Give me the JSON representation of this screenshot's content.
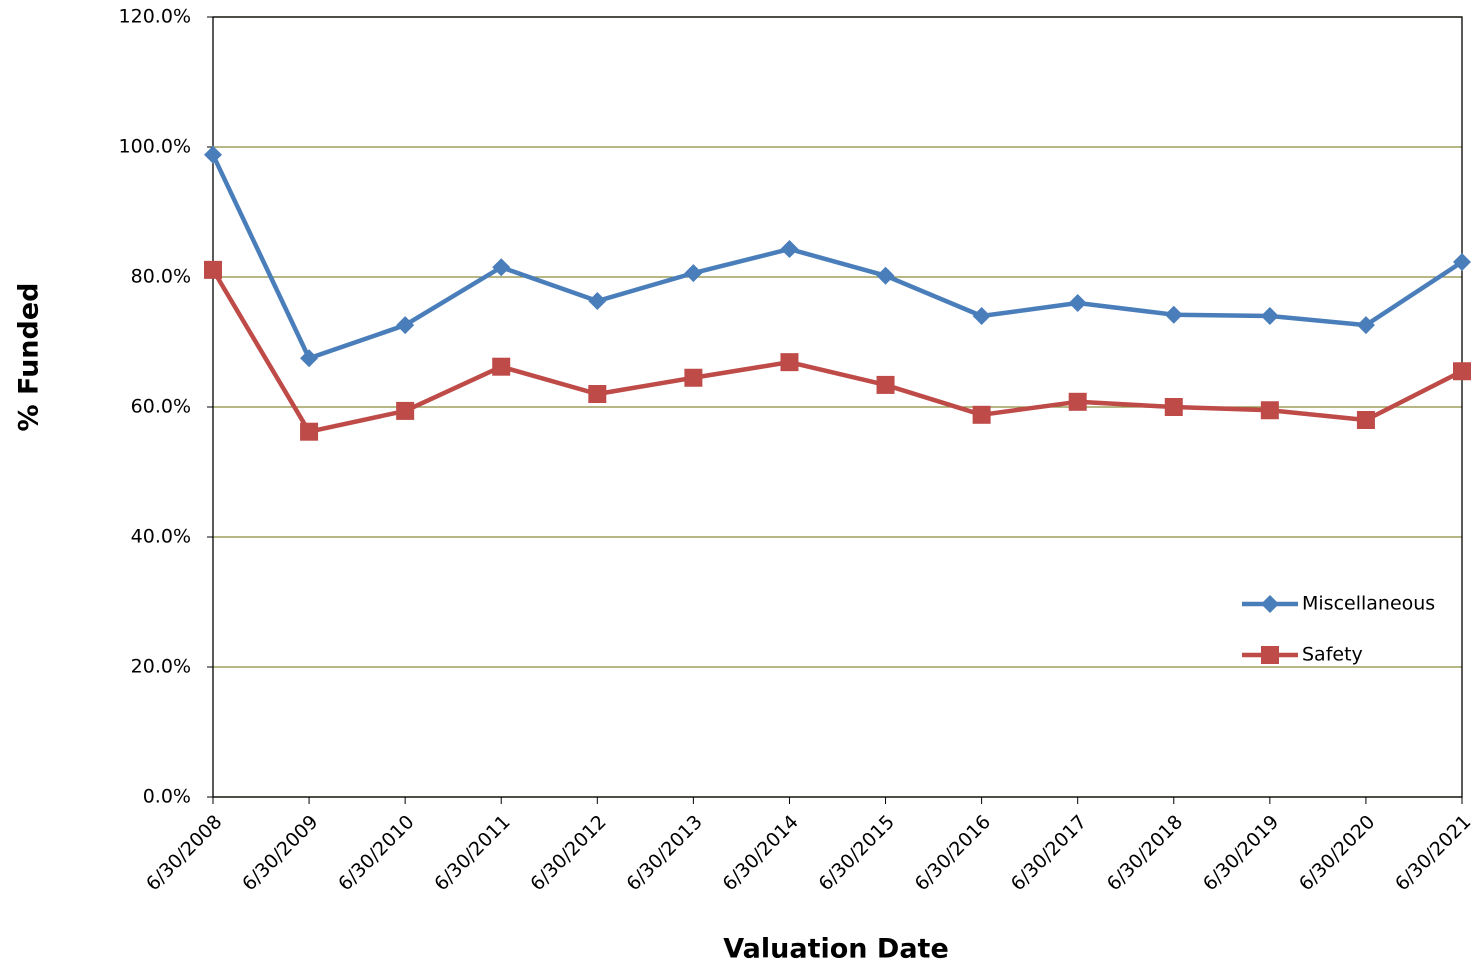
{
  "chart_data": {
    "type": "line",
    "x_label": "Valuation Date",
    "y_label": "% Funded",
    "categories": [
      "6/30/2008",
      "6/30/2009",
      "6/30/2010",
      "6/30/2011",
      "6/30/2012",
      "6/30/2013",
      "6/30/2014",
      "6/30/2015",
      "6/30/2016",
      "6/30/2017",
      "6/30/2018",
      "6/30/2019",
      "6/30/2020",
      "6/30/2021"
    ],
    "series": [
      {
        "name": "Miscellaneous",
        "color": "#4a7ebb",
        "marker": "diamond",
        "values": [
          98.8,
          67.5,
          72.6,
          81.5,
          76.3,
          80.6,
          84.3,
          80.2,
          74.0,
          76.0,
          74.2,
          74.0,
          72.6,
          82.3
        ]
      },
      {
        "name": "Safety",
        "color": "#be4b48",
        "marker": "square",
        "values": [
          81.1,
          56.2,
          59.4,
          66.2,
          62.0,
          64.5,
          66.9,
          63.4,
          58.8,
          60.8,
          60.0,
          59.5,
          58.0,
          65.5
        ]
      }
    ],
    "ylim": [
      0,
      120
    ],
    "yticks": [
      {
        "value": 0,
        "label": "0.0%"
      },
      {
        "value": 20,
        "label": "20.0%"
      },
      {
        "value": 40,
        "label": "40.0%"
      },
      {
        "value": 60,
        "label": "60.0%"
      },
      {
        "value": 80,
        "label": "80.0%"
      },
      {
        "value": 100,
        "label": "100.0%"
      },
      {
        "value": 120,
        "label": "120.0%"
      }
    ],
    "grid": true,
    "grid_color": "#8c8c3c",
    "legend": "right"
  }
}
